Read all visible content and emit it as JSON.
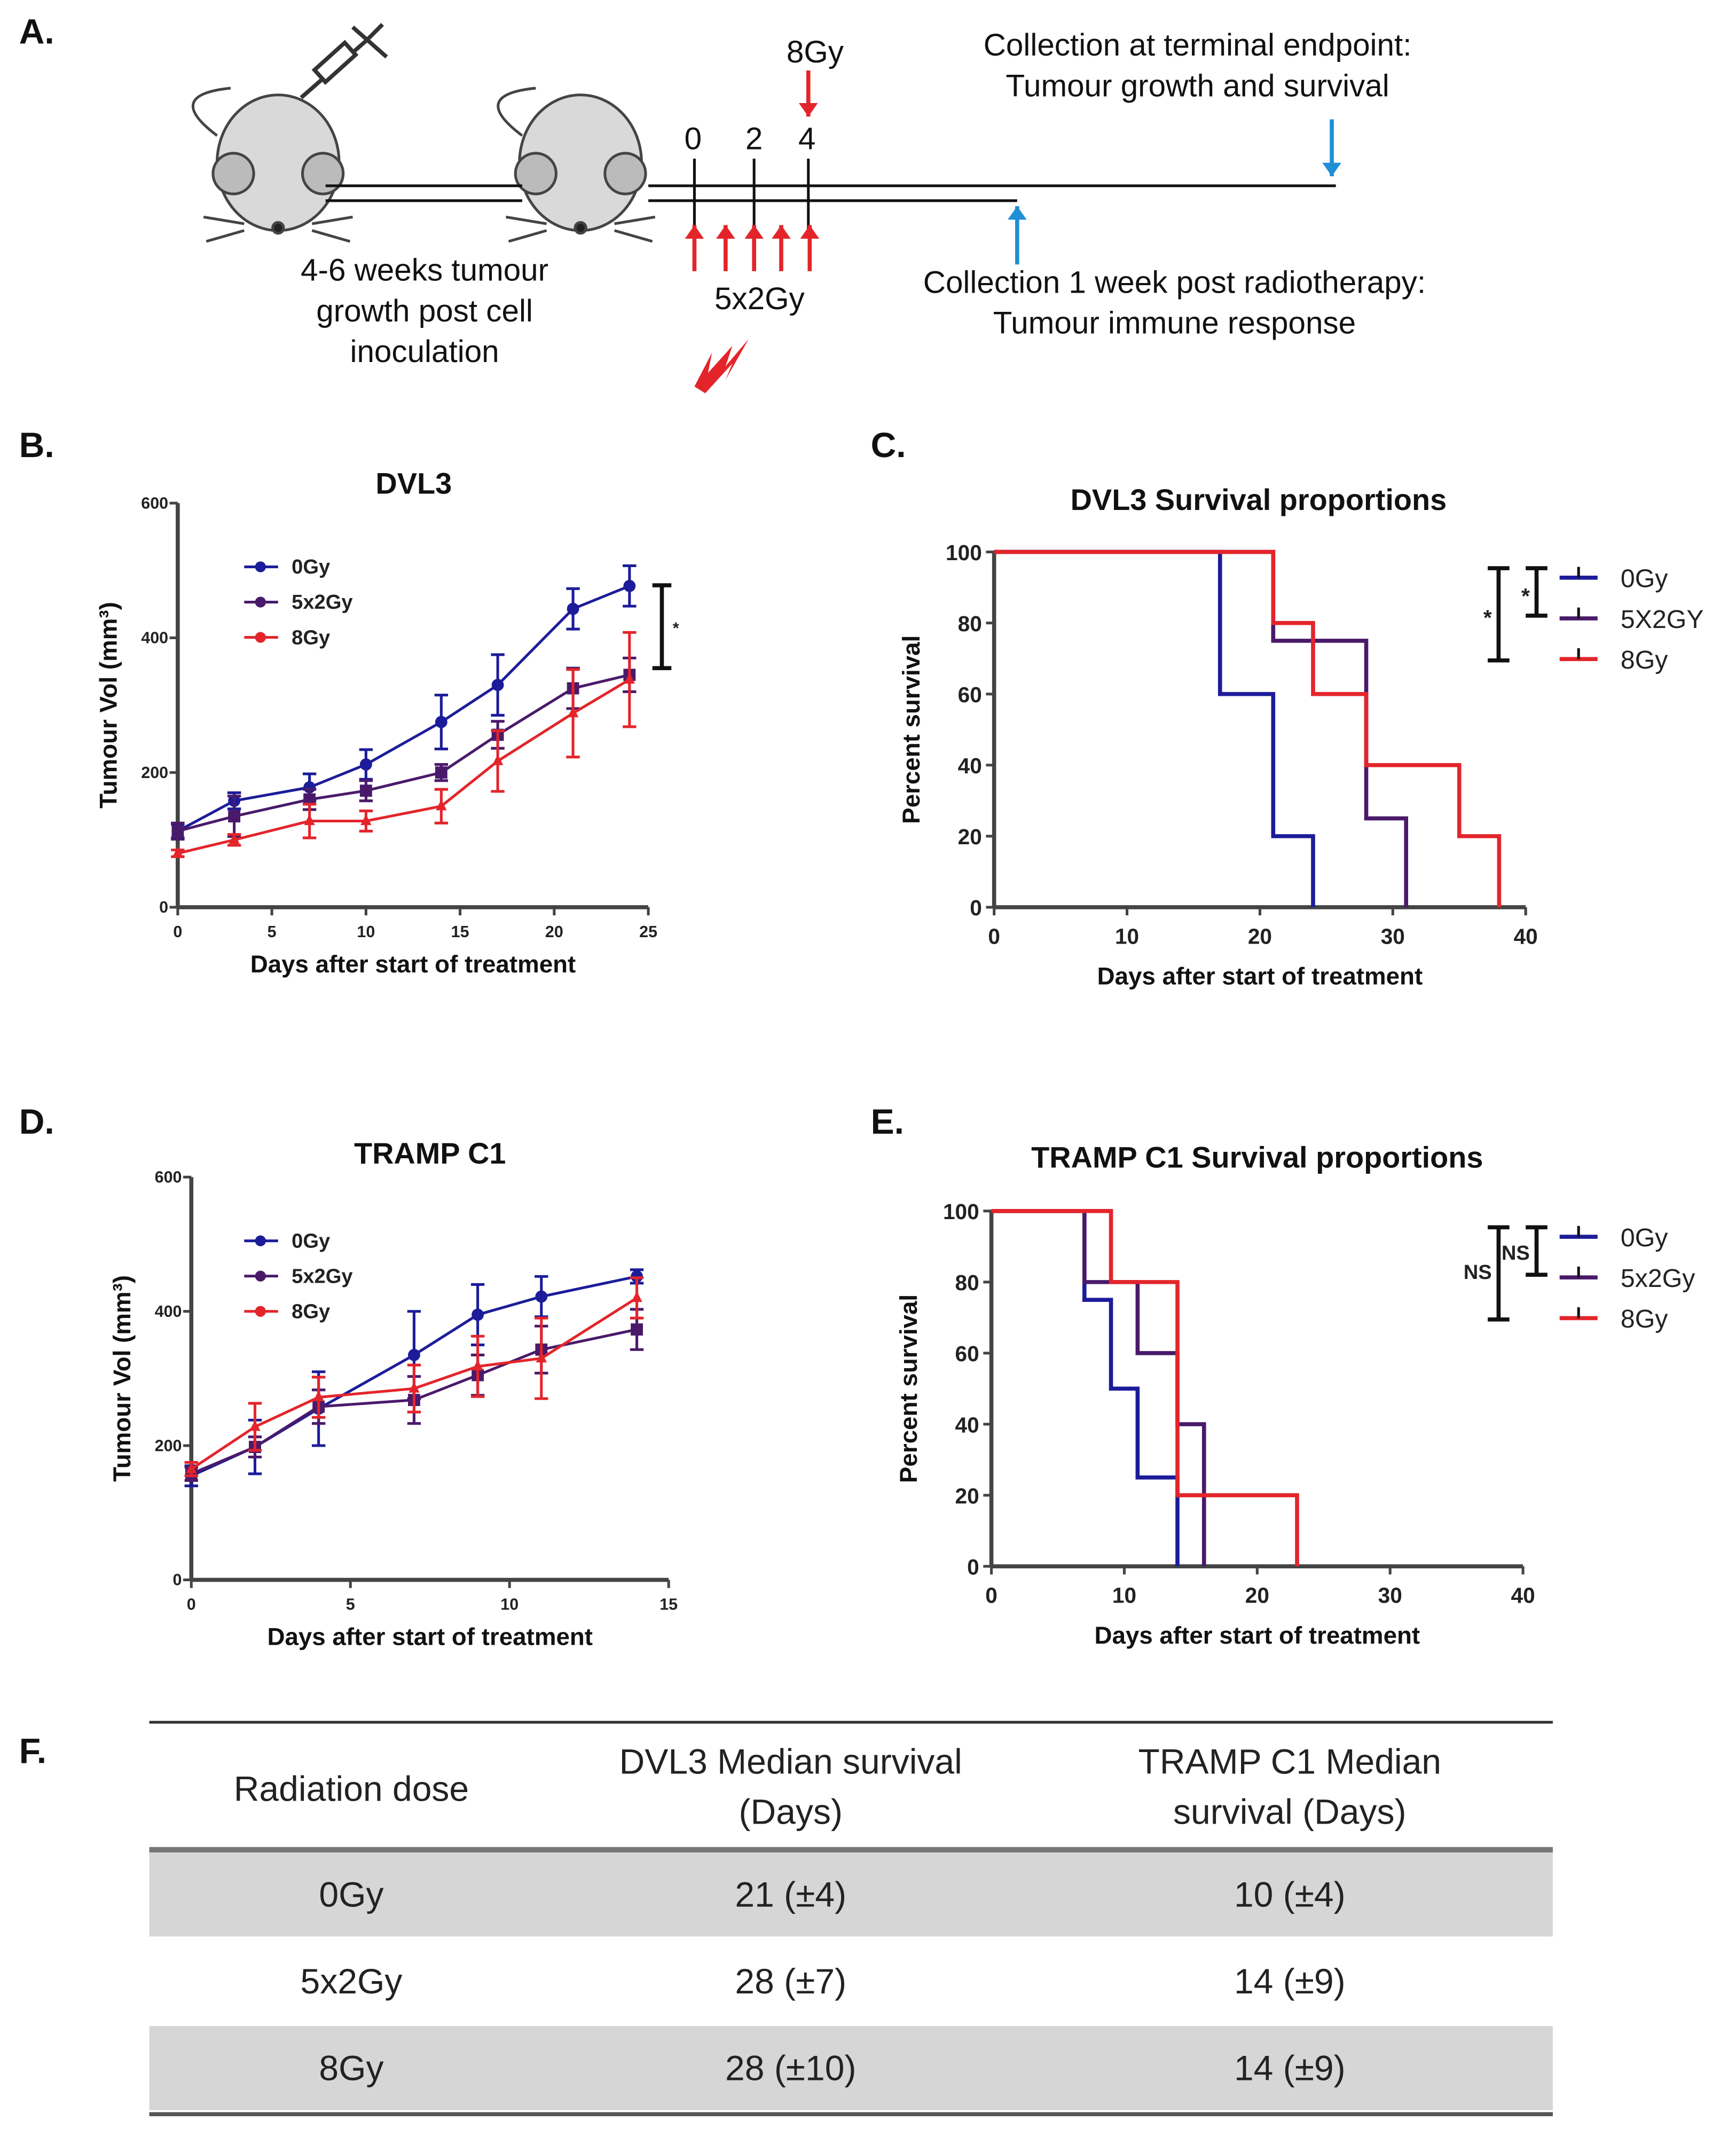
{
  "panel_labels": [
    "A.",
    "B.",
    "C.",
    "D.",
    "E.",
    "F."
  ],
  "diagram": {
    "dose_single": "8Gy",
    "days": [
      "0",
      "2",
      "4"
    ],
    "dose_fractionated": "5x2Gy",
    "growth_text": [
      "4-6 weeks tumour",
      "growth post cell",
      "inoculation"
    ],
    "terminal_text": [
      "Collection  at terminal endpoint:",
      "Tumour growth and survival"
    ],
    "week_text": [
      "Collection  1 week post radiotherapy:",
      "Tumour immune response"
    ]
  },
  "colors": {
    "0Gy": "#1c1c9a",
    "5x2Gy": "#4a1a6a",
    "8Gy": "#e3252b"
  },
  "chart_data": [
    {
      "id": "B",
      "type": "line",
      "title": "DVL3",
      "xlabel": "Days after start of treatment",
      "ylabel": "Tumour Vol (mm³)",
      "xlim": [
        0,
        25
      ],
      "ylim": [
        0,
        600
      ],
      "xticks": [
        0,
        5,
        10,
        15,
        20,
        25
      ],
      "yticks": [
        0,
        200,
        400,
        600
      ],
      "legend": "top-left",
      "x": [
        0,
        3,
        7,
        10,
        14,
        17,
        21,
        24
      ],
      "series": [
        {
          "name": "0Gy",
          "values": [
            113,
            158,
            178,
            212,
            275,
            330,
            443,
            477
          ],
          "err": [
            10,
            12,
            20,
            22,
            40,
            45,
            30,
            30
          ]
        },
        {
          "name": "5x2Gy",
          "values": [
            113,
            135,
            160,
            173,
            200,
            256,
            325,
            345
          ],
          "err": [
            12,
            30,
            15,
            15,
            12,
            20,
            30,
            25
          ]
        },
        {
          "name": "8Gy",
          "values": [
            80,
            100,
            128,
            128,
            150,
            217,
            288,
            338
          ],
          "err": [
            5,
            8,
            25,
            15,
            25,
            45,
            65,
            70
          ]
        }
      ],
      "significance": [
        {
          "label": "*",
          "range": [
            355,
            478
          ]
        }
      ]
    },
    {
      "id": "C",
      "type": "line",
      "title": "DVL3 Survival proportions",
      "xlabel": "Days after start of treatment",
      "ylabel": "Percent survival",
      "xlim": [
        0,
        40
      ],
      "ylim": [
        0,
        100
      ],
      "xticks": [
        0,
        10,
        20,
        30,
        40
      ],
      "yticks": [
        0,
        20,
        40,
        60,
        80,
        100
      ],
      "legend": "right",
      "series": [
        {
          "name": "0Gy",
          "steps": [
            [
              0,
              100
            ],
            [
              17,
              60
            ],
            [
              21,
              20
            ],
            [
              24,
              0
            ]
          ]
        },
        {
          "name": "5X2GY",
          "steps": [
            [
              0,
              100
            ],
            [
              21,
              75
            ],
            [
              28,
              25
            ],
            [
              31,
              0
            ]
          ]
        },
        {
          "name": "8Gy",
          "steps": [
            [
              0,
              100
            ],
            [
              21,
              80
            ],
            [
              24,
              60
            ],
            [
              28,
              40
            ],
            [
              35,
              20
            ],
            [
              38,
              0
            ]
          ]
        }
      ],
      "significance": [
        "*",
        "*"
      ]
    },
    {
      "id": "D",
      "type": "line",
      "title": "TRAMP C1",
      "xlabel": "Days after start of treatment",
      "ylabel": "Tumour Vol (mm³)",
      "xlim": [
        0,
        15
      ],
      "ylim": [
        0,
        600
      ],
      "xticks": [
        0,
        5,
        10,
        15
      ],
      "yticks": [
        0,
        200,
        400,
        600
      ],
      "legend": "top-left",
      "x": [
        0,
        2,
        4,
        7,
        9,
        11,
        14
      ],
      "series": [
        {
          "name": "0Gy",
          "values": [
            155,
            198,
            255,
            335,
            395,
            422,
            452
          ],
          "err": [
            15,
            40,
            55,
            65,
            45,
            30,
            10
          ]
        },
        {
          "name": "5x2Gy",
          "values": [
            158,
            198,
            258,
            268,
            305,
            343,
            373
          ],
          "err": [
            10,
            15,
            25,
            35,
            30,
            35,
            30
          ]
        },
        {
          "name": "8Gy",
          "values": [
            165,
            228,
            272,
            285,
            318,
            330,
            420
          ],
          "err": [
            10,
            35,
            30,
            35,
            45,
            60,
            30
          ]
        }
      ]
    },
    {
      "id": "E",
      "type": "line",
      "title": "TRAMP C1 Survival proportions",
      "xlabel": "Days after start of treatment",
      "ylabel": "Percent survival",
      "xlim": [
        0,
        40
      ],
      "ylim": [
        0,
        100
      ],
      "xticks": [
        0,
        10,
        20,
        30,
        40
      ],
      "yticks": [
        0,
        20,
        40,
        60,
        80,
        100
      ],
      "legend": "right",
      "series": [
        {
          "name": "0Gy",
          "steps": [
            [
              0,
              100
            ],
            [
              7,
              75
            ],
            [
              9,
              50
            ],
            [
              11,
              25
            ],
            [
              14,
              0
            ]
          ]
        },
        {
          "name": "5x2Gy",
          "steps": [
            [
              0,
              100
            ],
            [
              7,
              80
            ],
            [
              11,
              60
            ],
            [
              14,
              40
            ],
            [
              16,
              20
            ],
            [
              16,
              0
            ]
          ]
        },
        {
          "name": "8Gy",
          "steps": [
            [
              0,
              100
            ],
            [
              9,
              80
            ],
            [
              14,
              20
            ],
            [
              23,
              0
            ]
          ]
        }
      ],
      "significance": [
        "NS",
        "NS"
      ]
    }
  ],
  "table": {
    "headers": [
      [
        "Radiation dose"
      ],
      [
        "DVL3 Median survival",
        "(Days)"
      ],
      [
        "TRAMP C1 Median",
        "survival (Days)"
      ]
    ],
    "rows": [
      [
        "0Gy",
        "21 (±4)",
        "10 (±4)"
      ],
      [
        "5x2Gy",
        "28 (±7)",
        "14 (±9)"
      ],
      [
        "8Gy",
        "28 (±10)",
        "14 (±9)"
      ]
    ]
  }
}
